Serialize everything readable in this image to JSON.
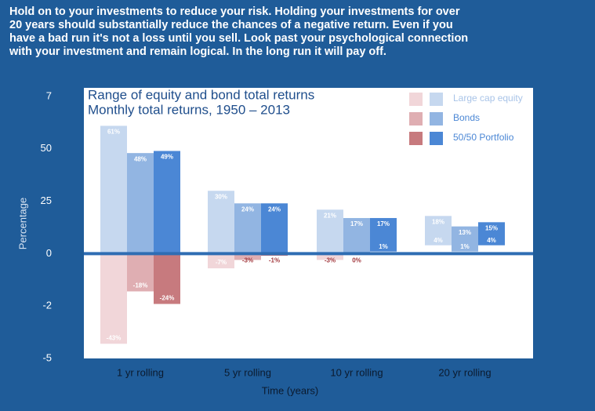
{
  "intro": [
    "Hold on to your investments to reduce your risk. Holding your investments for over",
    "20 years should substantially reduce the chances of a negative return. Even if you",
    "have a bad run it's not a loss until you sell. Look past your psychological connection",
    "with your investment and remain logical. In the long run it will pay off."
  ],
  "chart_data": {
    "type": "range-bar",
    "title": "Range of equity and bond total returns",
    "subtitle": "Monthly total returns, 1950 – 2013",
    "x_label": "Time (years)",
    "y_label": "Percentage",
    "categories": [
      "1 yr rolling",
      "5 yr rolling",
      "10 yr rolling",
      "20 yr rolling"
    ],
    "ylim": [
      -50,
      75
    ],
    "yticks": [
      {
        "value": 75,
        "label": "7"
      },
      50,
      25,
      0,
      {
        "value": -25,
        "label": "-2"
      },
      {
        "value": -50,
        "label": "-5"
      }
    ],
    "series": [
      {
        "name": "Large cap equity",
        "color": "#c6d8ef",
        "negative_color": "#f1d6d9",
        "values": [
          61,
          30,
          21,
          18
        ],
        "value_labels": [
          "61%",
          "30%",
          "21%",
          "18%"
        ],
        "low_values": [
          -43,
          -7,
          -3,
          4
        ],
        "low_value_labels": [
          "-43%",
          "-7%",
          "-3%",
          "4%"
        ]
      },
      {
        "name": "Bonds",
        "color": "#92b5e2",
        "negative_color": "#dfaeb2",
        "values": [
          48,
          24,
          17,
          13
        ],
        "value_labels": [
          "48%",
          "24%",
          "17%",
          "13%"
        ],
        "low_values": [
          -18,
          -3,
          0,
          1
        ],
        "low_value_labels": [
          "-18%",
          "-3%",
          "0%",
          "1%"
        ]
      },
      {
        "name": "50/50 Portfolio",
        "color": "#4b87d5",
        "negative_color": "#c77a7e",
        "values": [
          49,
          24,
          17,
          15
        ],
        "value_labels": [
          "49%",
          "24%",
          "17%",
          "15%"
        ],
        "low_values": [
          -24,
          -1,
          1,
          4
        ],
        "low_value_labels": [
          "-24%",
          "-1%",
          "1%",
          "4%"
        ]
      }
    ]
  }
}
